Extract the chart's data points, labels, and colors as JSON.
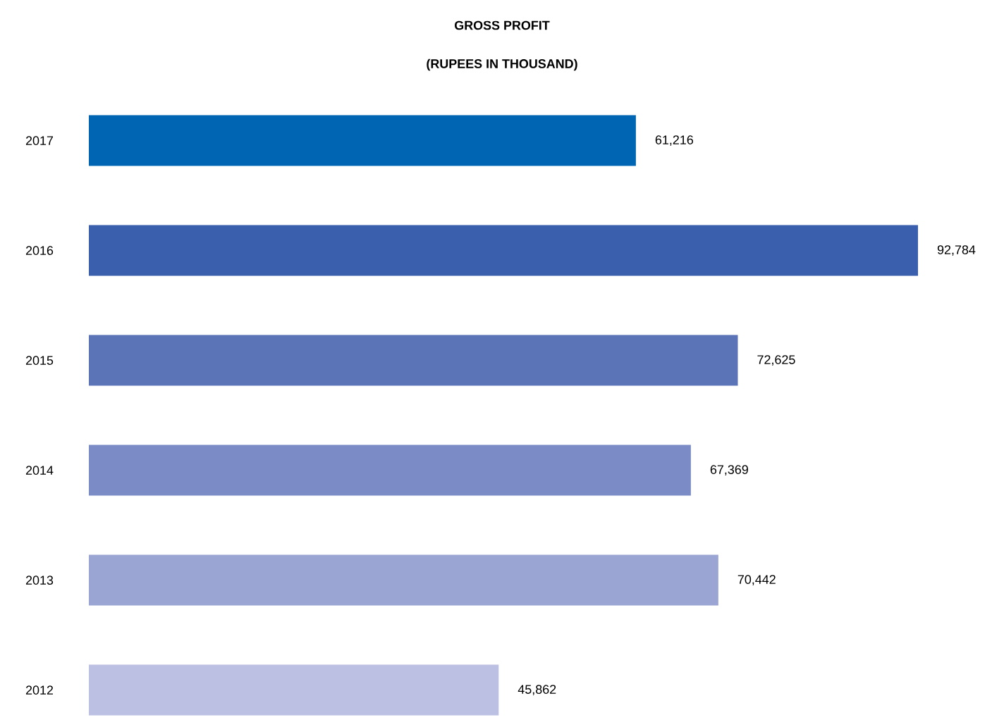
{
  "chart_data": {
    "type": "bar",
    "orientation": "horizontal",
    "title": "GROSS PROFIT",
    "subtitle": "(RUPEES IN THOUSAND)",
    "categories": [
      "2017",
      "2016",
      "2015",
      "2014",
      "2013",
      "2012"
    ],
    "values": [
      61216,
      92784,
      72625,
      67369,
      70442,
      45862
    ],
    "value_labels": [
      "61,216",
      "92,784",
      "72,625",
      "67,369",
      "70,442",
      "45,862"
    ],
    "colors": [
      "#0066b3",
      "#3a5fad",
      "#5b74b8",
      "#7b8bc5",
      "#9ba5d3",
      "#bcc0e2"
    ]
  }
}
